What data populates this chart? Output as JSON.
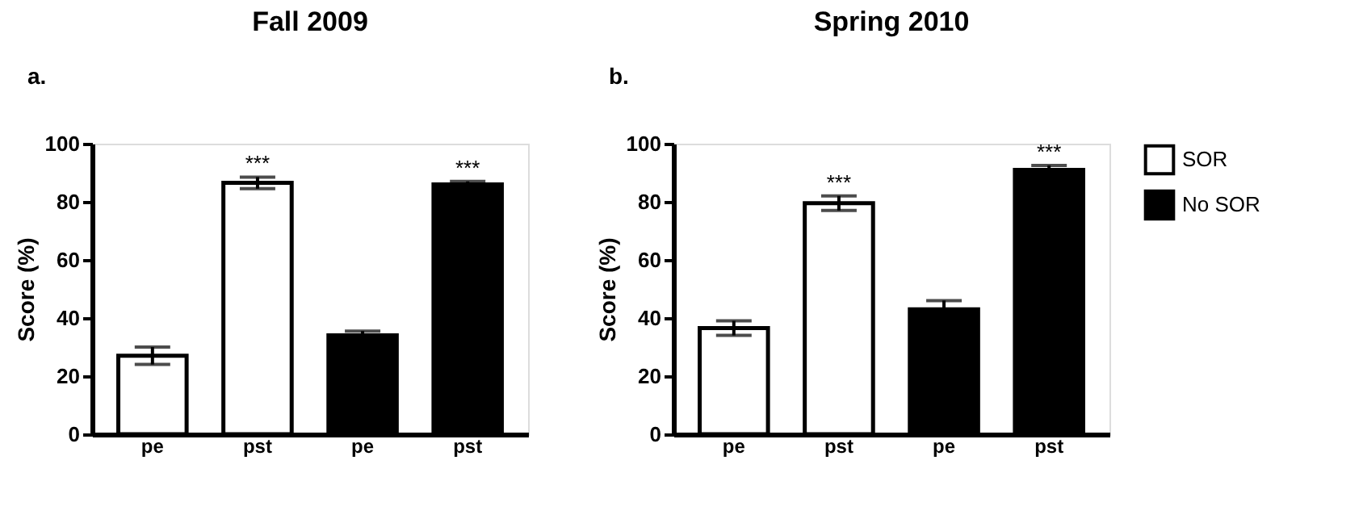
{
  "chart_data": [
    {
      "type": "bar",
      "title": "Fall 2009",
      "ylabel": "Score (%)",
      "categories": [
        "pe",
        "pst",
        "pe",
        "pst"
      ],
      "series": [
        {
          "name": "SOR",
          "color": "#ffffff",
          "values": [
            27,
            86.5,
            null,
            null
          ],
          "errors": [
            3,
            2,
            null,
            null
          ],
          "value_labels": [
            null,
            "***",
            null,
            null
          ]
        },
        {
          "name": "No SOR",
          "color": "#000000",
          "values": [
            null,
            null,
            34,
            86
          ],
          "errors": [
            null,
            null,
            1.5,
            1
          ],
          "value_labels": [
            null,
            null,
            null,
            "***"
          ]
        }
      ],
      "ylim": [
        0,
        100
      ],
      "yticks": [
        0,
        20,
        40,
        60,
        80,
        100
      ],
      "grid": false,
      "legend": "right",
      "annotations": [
        "a."
      ]
    },
    {
      "type": "bar",
      "title": "Spring 2010",
      "ylabel": "Score (%)",
      "categories": [
        "pe",
        "pst",
        "pe",
        "pst"
      ],
      "series": [
        {
          "name": "SOR",
          "color": "#ffffff",
          "values": [
            36.5,
            79.5,
            null,
            null
          ],
          "errors": [
            2.5,
            2.5,
            null,
            null
          ],
          "value_labels": [
            null,
            "***",
            null,
            null
          ]
        },
        {
          "name": "No SOR",
          "color": "#000000",
          "values": [
            null,
            null,
            43,
            91
          ],
          "errors": [
            null,
            null,
            3,
            1.5
          ],
          "value_labels": [
            null,
            null,
            null,
            "***"
          ]
        }
      ],
      "ylim": [
        0,
        100
      ],
      "yticks": [
        0,
        20,
        40,
        60,
        80,
        100
      ],
      "grid": false,
      "legend": false,
      "annotations": [
        "b."
      ]
    }
  ]
}
